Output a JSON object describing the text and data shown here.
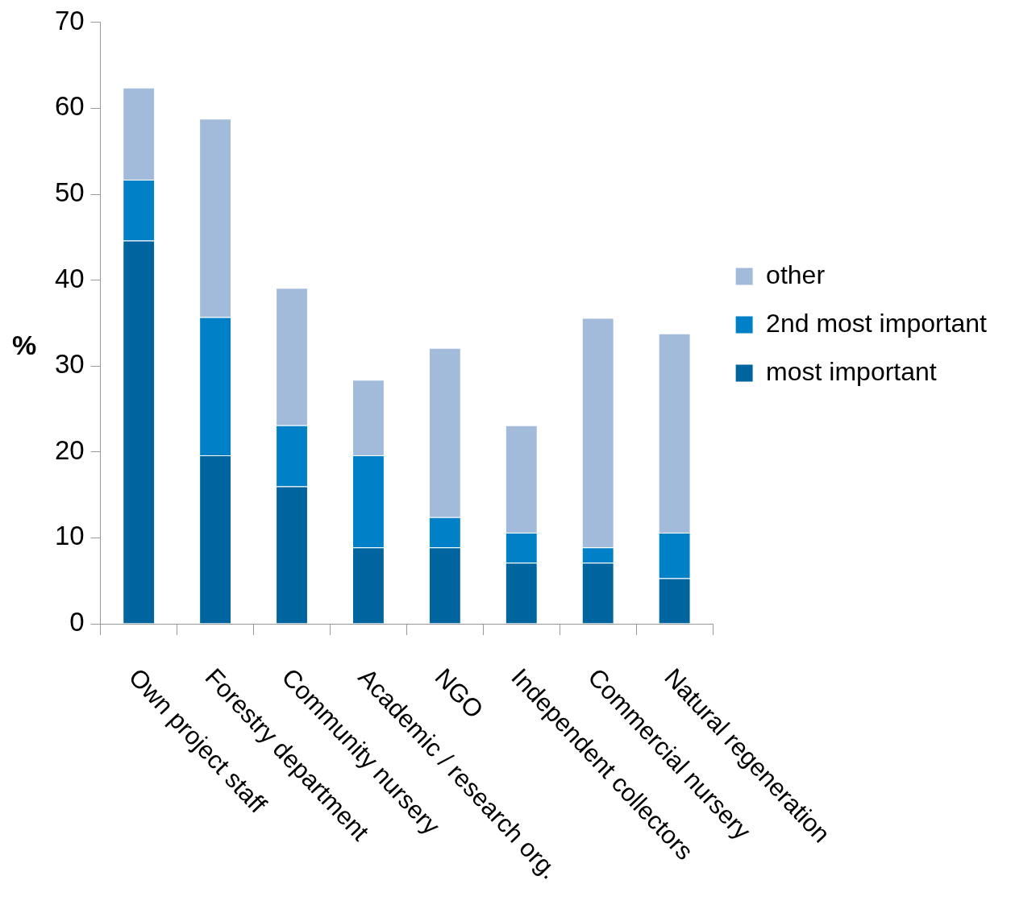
{
  "chart_data": {
    "type": "bar",
    "stacked": true,
    "ylabel": "%",
    "ylim": [
      0,
      70
    ],
    "yticks": [
      0,
      10,
      20,
      30,
      40,
      50,
      60,
      70
    ],
    "grid": false,
    "legend": "right",
    "categories": [
      "Own project staff",
      "Forestry department",
      "Community nursery",
      "Academic / research org.",
      "NGO",
      "Independent collectors",
      "Commercial nursery",
      "Natural regeneration"
    ],
    "series": [
      {
        "name": "most important",
        "color": "#00659f",
        "values": [
          44.6,
          19.6,
          16.0,
          8.9,
          8.9,
          7.1,
          7.1,
          5.3
        ]
      },
      {
        "name": "2nd most important",
        "color": "#0080c6",
        "values": [
          7.1,
          16.1,
          7.1,
          10.7,
          3.5,
          3.5,
          1.8,
          5.3
        ]
      },
      {
        "name": "other",
        "color": "#a3bbdb",
        "values": [
          10.7,
          23.1,
          16.0,
          8.8,
          19.7,
          12.5,
          26.7,
          23.2
        ]
      }
    ]
  }
}
